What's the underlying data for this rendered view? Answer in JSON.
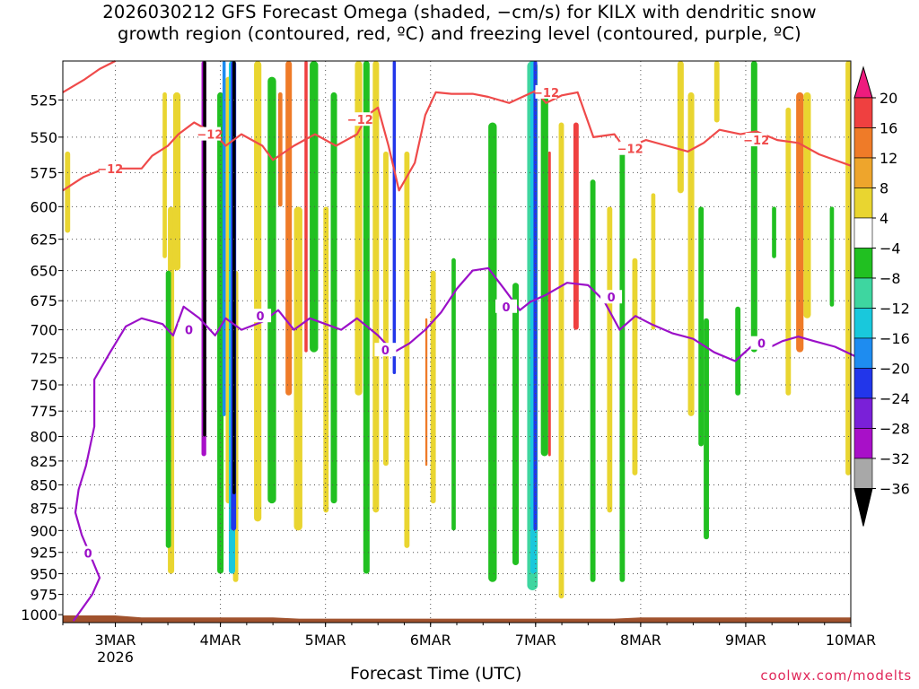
{
  "title": {
    "line1": "2026030212 GFS Forecast Omega (shaded, −cm/s) for KILX with dendritic snow",
    "line2": "growth region (contoured, red, ºC) and freezing level (contoured, purple, ºC)"
  },
  "footer": {
    "credit": "coolwx.com/modelts"
  },
  "chart_data": {
    "type": "heatmap",
    "title": "2026030212 GFS Forecast Omega (shaded, −cm/s) for KILX with dendritic snow growth region (contoured, red, ºC) and freezing level (contoured, purple, ºC)",
    "xlabel": "Forecast Time (UTC)",
    "ylabel": "",
    "x_ticks": [
      {
        "label": "3MAR",
        "sub": "2026",
        "t": 0.5
      },
      {
        "label": "4MAR",
        "sub": "",
        "t": 1.5
      },
      {
        "label": "5MAR",
        "sub": "",
        "t": 2.5
      },
      {
        "label": "6MAR",
        "sub": "",
        "t": 3.5
      },
      {
        "label": "7MAR",
        "sub": "",
        "t": 4.5
      },
      {
        "label": "8MAR",
        "sub": "",
        "t": 5.5
      },
      {
        "label": "9MAR",
        "sub": "",
        "t": 6.5
      },
      {
        "label": "10MAR",
        "sub": "",
        "t": 7.5
      }
    ],
    "xlim_days": [
      0,
      7.5
    ],
    "y_ticks": [
      525,
      550,
      575,
      600,
      625,
      650,
      675,
      700,
      725,
      750,
      775,
      800,
      825,
      850,
      875,
      900,
      925,
      950,
      975,
      1000
    ],
    "ylim_hPa": [
      1010,
      500
    ],
    "y_scale": "log-pressure",
    "grid": true,
    "colorbar": {
      "labels": [
        "20",
        "16",
        "12",
        "8",
        "4",
        "−4",
        "−8",
        "−12",
        "−16",
        "−20",
        "−24",
        "−28",
        "−32",
        "−36"
      ],
      "colors": [
        "#ee1c7e",
        "#ef4040",
        "#ef7b28",
        "#eea52c",
        "#e9d530",
        "#ffffff",
        "#21c021",
        "#3ed6a0",
        "#19c8dc",
        "#1e8cf0",
        "#2236ea",
        "#7a20d8",
        "#a810c8",
        "#a8a8a8"
      ]
    },
    "series": [
      {
        "name": "freezing level",
        "label": "0",
        "color": "#9b10c8",
        "points": [
          [
            0.1,
            1008
          ],
          [
            0.28,
            975
          ],
          [
            0.35,
            955
          ],
          [
            0.25,
            925
          ],
          [
            0.18,
            905
          ],
          [
            0.12,
            880
          ],
          [
            0.15,
            855
          ],
          [
            0.22,
            830
          ],
          [
            0.3,
            790
          ],
          [
            0.3,
            745
          ],
          [
            0.45,
            720
          ],
          [
            0.6,
            697
          ],
          [
            0.75,
            690
          ],
          [
            0.95,
            695
          ],
          [
            1.05,
            705
          ],
          [
            1.15,
            680
          ],
          [
            1.3,
            690
          ],
          [
            1.45,
            705
          ],
          [
            1.55,
            690
          ],
          [
            1.7,
            700
          ],
          [
            1.9,
            693
          ],
          [
            2.05,
            683
          ],
          [
            2.2,
            700
          ],
          [
            2.35,
            690
          ],
          [
            2.5,
            695
          ],
          [
            2.65,
            700
          ],
          [
            2.8,
            690
          ],
          [
            3.0,
            705
          ],
          [
            3.15,
            720
          ],
          [
            3.3,
            712
          ],
          [
            3.45,
            700
          ],
          [
            3.6,
            685
          ],
          [
            3.75,
            665
          ],
          [
            3.9,
            650
          ],
          [
            4.05,
            648
          ],
          [
            4.2,
            665
          ],
          [
            4.35,
            683
          ],
          [
            4.45,
            676
          ],
          [
            4.6,
            670
          ],
          [
            4.8,
            660
          ],
          [
            5.0,
            662
          ],
          [
            5.15,
            675
          ],
          [
            5.3,
            700
          ],
          [
            5.45,
            688
          ],
          [
            5.6,
            695
          ],
          [
            5.8,
            703
          ],
          [
            6.0,
            708
          ],
          [
            6.2,
            720
          ],
          [
            6.4,
            728
          ],
          [
            6.55,
            715
          ],
          [
            6.7,
            717
          ],
          [
            6.85,
            710
          ],
          [
            7.0,
            706
          ],
          [
            7.15,
            710
          ],
          [
            7.35,
            715
          ],
          [
            7.55,
            724
          ]
        ]
      },
      {
        "name": "dendritic growth upper",
        "label": "−12",
        "color": "#ef4a4a",
        "points": [
          [
            0.0,
            520
          ],
          [
            0.2,
            512
          ],
          [
            0.35,
            505
          ],
          [
            0.5,
            500
          ]
        ]
      },
      {
        "name": "dendritic growth lower",
        "label": "−12",
        "color": "#ef4a4a",
        "points": [
          [
            0.0,
            588
          ],
          [
            0.2,
            578
          ],
          [
            0.4,
            572
          ],
          [
            0.6,
            572
          ],
          [
            0.75,
            572
          ],
          [
            0.85,
            563
          ],
          [
            1.0,
            556
          ],
          [
            1.1,
            548
          ],
          [
            1.25,
            540
          ],
          [
            1.45,
            548
          ],
          [
            1.55,
            556
          ],
          [
            1.7,
            548
          ],
          [
            1.9,
            556
          ],
          [
            2.0,
            566
          ],
          [
            2.2,
            556
          ],
          [
            2.4,
            548
          ],
          [
            2.6,
            556
          ],
          [
            2.8,
            548
          ],
          [
            2.9,
            535
          ],
          [
            3.0,
            530
          ],
          [
            3.1,
            556
          ],
          [
            3.2,
            588
          ],
          [
            3.35,
            568
          ],
          [
            3.45,
            535
          ],
          [
            3.55,
            520
          ],
          [
            3.7,
            521
          ],
          [
            3.9,
            521
          ],
          [
            4.05,
            523
          ],
          [
            4.25,
            527
          ],
          [
            4.5,
            519
          ],
          [
            4.6,
            527
          ],
          [
            4.75,
            522
          ],
          [
            4.9,
            520
          ],
          [
            5.05,
            550
          ],
          [
            5.25,
            548
          ],
          [
            5.35,
            558
          ],
          [
            5.55,
            552
          ],
          [
            5.75,
            556
          ],
          [
            5.95,
            560
          ],
          [
            6.1,
            554
          ],
          [
            6.25,
            545
          ],
          [
            6.45,
            548
          ],
          [
            6.6,
            546
          ],
          [
            6.8,
            552
          ],
          [
            7.0,
            554
          ],
          [
            7.2,
            562
          ],
          [
            7.35,
            566
          ],
          [
            7.5,
            570
          ]
        ]
      }
    ],
    "omega_bands_note": "shaded vertical bands of upward/downward motion",
    "ground_color": "#a0522d"
  }
}
